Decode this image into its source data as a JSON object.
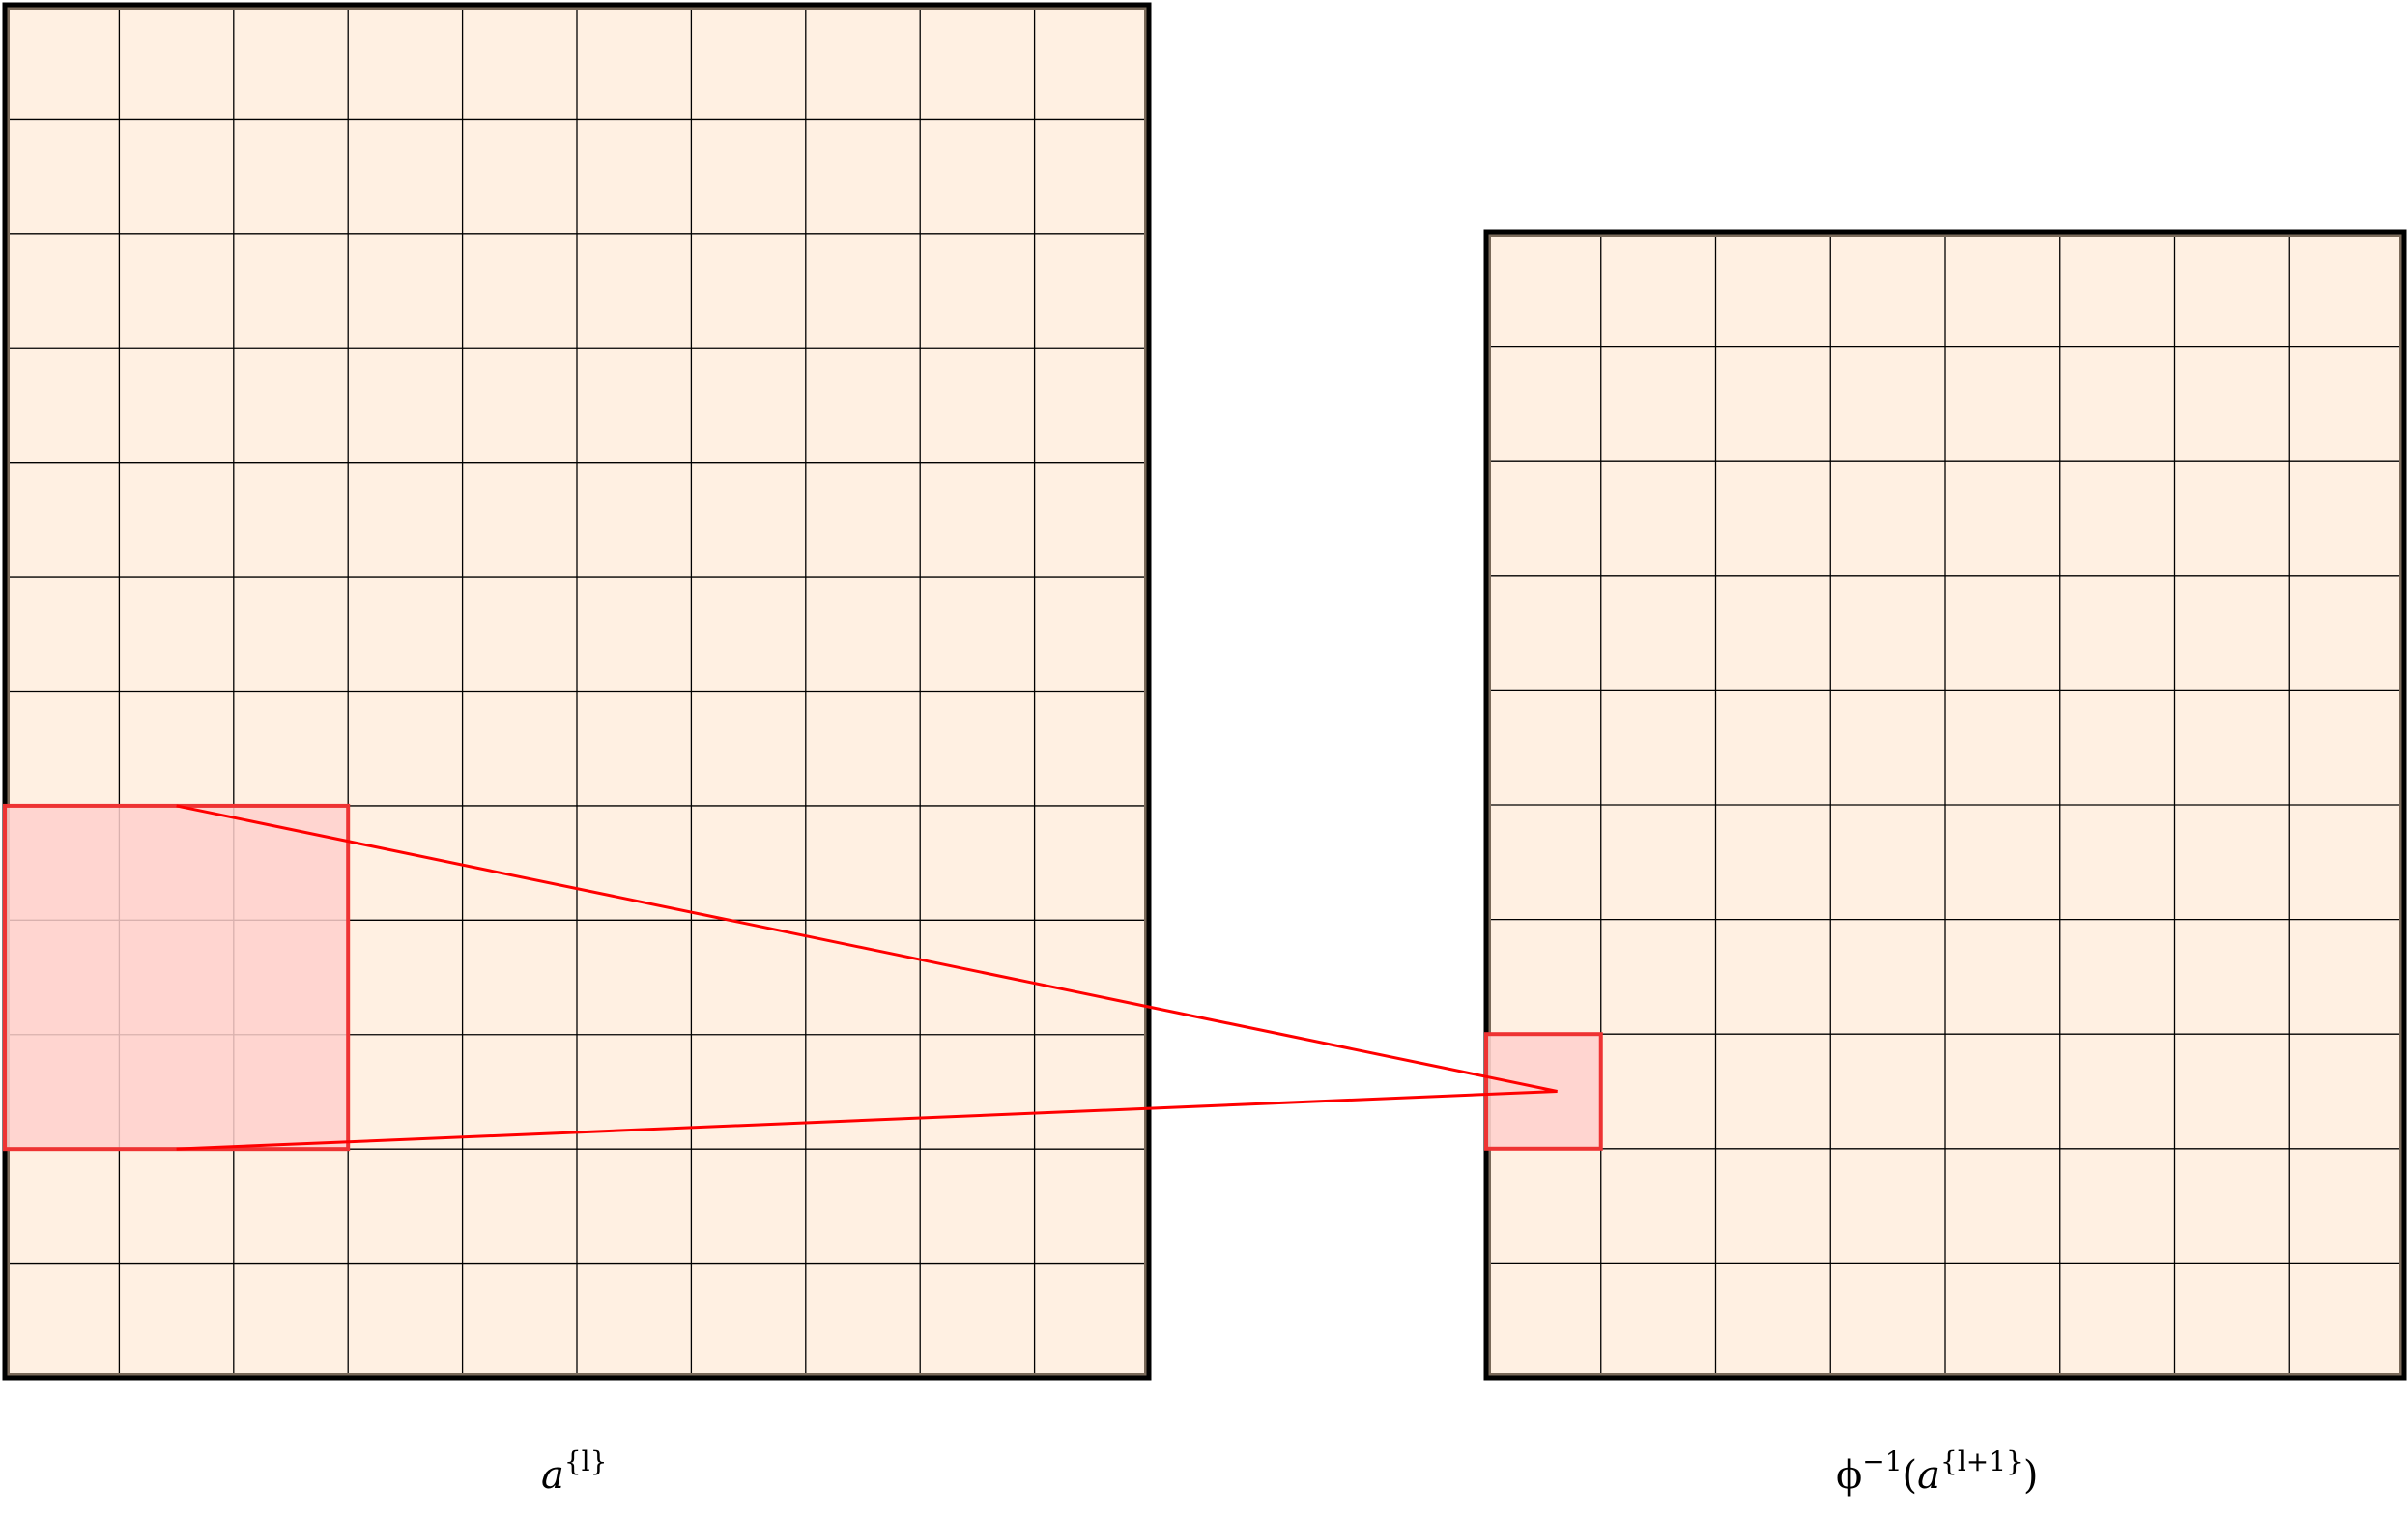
{
  "diagram": {
    "left_grid": {
      "columns": 10,
      "rows": 12,
      "label_base": "a",
      "label_sup": "{l}"
    },
    "right_grid": {
      "columns": 8,
      "rows": 10,
      "label_prefix": "ϕ",
      "label_prefix_sup": "−1",
      "label_open": "(",
      "label_base": "a",
      "label_sup": "{l+1}",
      "label_close": ")"
    },
    "receptive_field": {
      "left_cells": {
        "col_start": 0,
        "col_end": 2,
        "row_start": 7,
        "row_end": 9
      },
      "right_cell": {
        "col": 0,
        "row": 7
      }
    },
    "colors": {
      "cell_fill": "#fff0e2",
      "grid_line": "#000000",
      "highlight_fill": "#ffd0cc",
      "highlight_stroke": "#ee3333",
      "connector": "#ff0000"
    }
  }
}
